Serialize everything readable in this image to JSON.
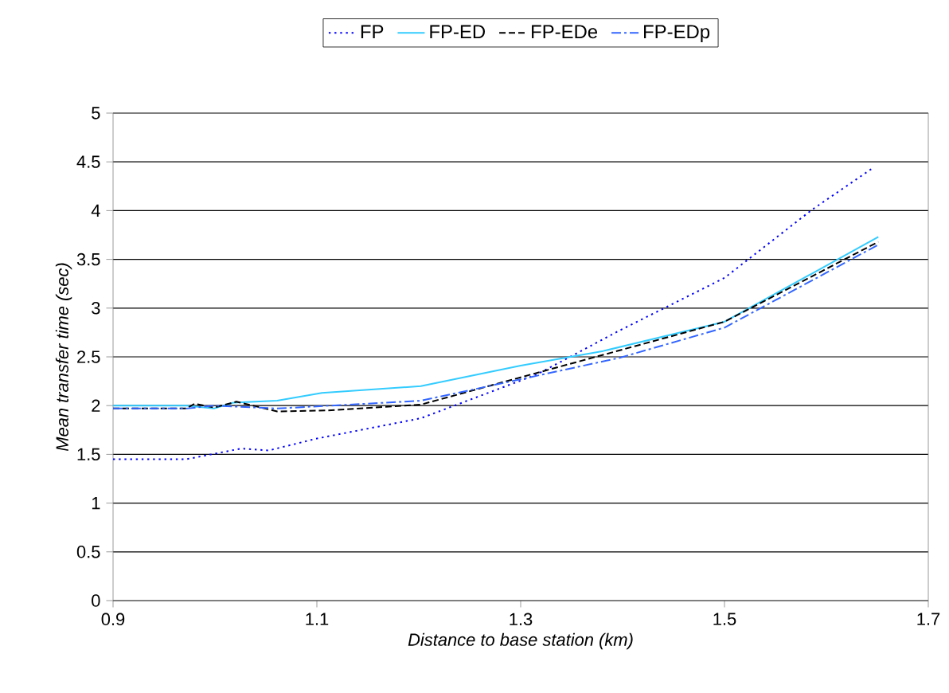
{
  "chart_data": {
    "type": "line",
    "xlabel": "Distance to base station (km)",
    "ylabel": "Mean transfer time (sec)",
    "xlim": [
      0.9,
      1.7
    ],
    "xticks": [
      0.9,
      1.1,
      1.3,
      1.5,
      1.7
    ],
    "ylim": [
      0,
      5
    ],
    "yticks": [
      0,
      0.5,
      1,
      1.5,
      2,
      2.5,
      3,
      3.5,
      4,
      4.5,
      5
    ],
    "grid": "y",
    "legend": "top",
    "marker": "none",
    "series": [
      {
        "name": "FP",
        "color": "#0000ff",
        "line_style": "dotted",
        "x": [
          0.9,
          0.972,
          1.026,
          1.053,
          1.099,
          1.202,
          1.316,
          1.397,
          1.5,
          1.586,
          1.646
        ],
        "values": [
          1.45,
          1.45,
          1.56,
          1.54,
          1.66,
          1.87,
          2.32,
          2.77,
          3.31,
          4.01,
          4.44
        ]
      },
      {
        "name": "FP-ED",
        "color": "#33ccff",
        "line_style": "solid",
        "x": [
          0.9,
          0.972,
          0.999,
          1.018,
          1.061,
          1.105,
          1.202,
          1.3,
          1.381,
          1.5,
          1.651
        ],
        "values": [
          2.0,
          2.0,
          1.97,
          2.03,
          2.05,
          2.13,
          2.2,
          2.41,
          2.56,
          2.86,
          3.73
        ]
      },
      {
        "name": "FP-EDe",
        "color": "#000000",
        "line_style": "dashed",
        "x": [
          0.9,
          0.972,
          0.98,
          0.999,
          1.021,
          1.061,
          1.11,
          1.202,
          1.3,
          1.5,
          1.651
        ],
        "values": [
          1.97,
          1.97,
          2.02,
          1.98,
          2.04,
          1.94,
          1.95,
          2.01,
          2.29,
          2.86,
          3.68
        ]
      },
      {
        "name": "FP-EDp",
        "color": "#3366ff",
        "line_style": "dashdot",
        "x": [
          0.9,
          0.972,
          0.999,
          1.061,
          1.202,
          1.3,
          1.397,
          1.5,
          1.651
        ],
        "values": [
          1.97,
          1.97,
          2.0,
          1.97,
          2.05,
          2.27,
          2.49,
          2.8,
          3.65
        ]
      }
    ]
  }
}
